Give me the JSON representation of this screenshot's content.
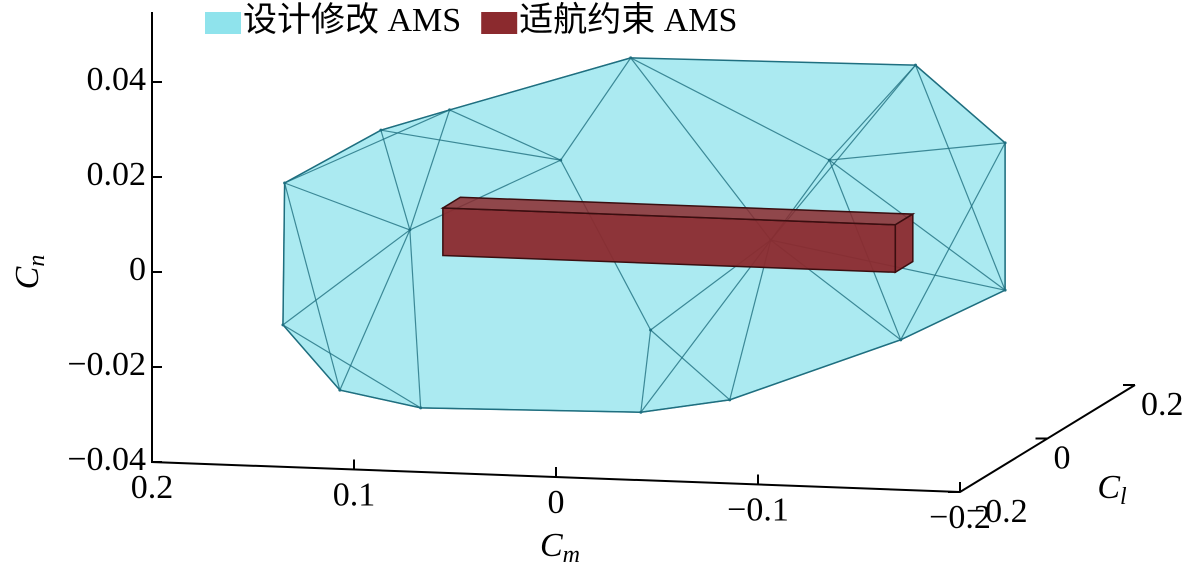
{
  "chart_data": {
    "type": "polyhedron3d",
    "xlabel": [
      "C",
      "m"
    ],
    "ylabel": [
      "C",
      "l"
    ],
    "zlabel": [
      "C",
      "n"
    ],
    "xlim": [
      -0.2,
      0.2
    ],
    "ylim": [
      -0.2,
      0.2
    ],
    "zlim": [
      -0.04,
      0.055
    ],
    "xticks": [
      0.2,
      0.1,
      0,
      {
        "value": -0.1,
        "label": "−0.1"
      },
      {
        "value": -0.2,
        "label": "−0.2"
      }
    ],
    "yticks": [
      {
        "value": -0.2,
        "label": "−0.2"
      },
      0,
      0.2
    ],
    "zticks": [
      {
        "value": -0.04,
        "label": "−0.04"
      },
      {
        "value": -0.02,
        "label": "−0.02"
      },
      0,
      0.02,
      0.04
    ],
    "series": [
      {
        "name": "设计修改 AMS",
        "color": "#8fe3ec",
        "edge_color": "#1f6f80",
        "vertices": [
          [
            0.156,
            -0.1,
            0.0138
          ],
          [
            0.146,
            -0.15,
            -0.0131
          ],
          [
            0.107,
            -0.2,
            -0.0234
          ],
          [
            0.067,
            -0.2,
            -0.0265
          ],
          [
            -0.042,
            -0.2,
            -0.0257
          ],
          [
            -0.086,
            -0.2,
            -0.0224
          ],
          [
            -0.149,
            -0.1,
            -0.0144
          ],
          [
            -0.179,
            0,
            -0.0091
          ],
          [
            -0.179,
            0,
            0.0219
          ],
          [
            -0.113,
            0.1,
            0.0316
          ],
          [
            0.028,
            0.1,
            0.0309
          ],
          [
            0.096,
            0,
            0.0245
          ],
          [
            0.13,
            0,
            0.0197
          ],
          [
            -0.063,
            0,
            -0.0004
          ],
          [
            0.041,
            0,
            0.0148
          ],
          [
            0.094,
            -0.1,
            0.0049
          ],
          [
            -0.036,
            -0.15,
            -0.0113
          ],
          [
            -0.092,
            0,
            0.0169
          ]
        ]
      },
      {
        "name": "适航约束 AMS",
        "color": "#8b2a2e",
        "box": {
          "x": [
            -0.129,
            0.095
          ],
          "y": [
            -0.02,
            0.02
          ],
          "z": [
            -0.005,
            0.005
          ]
        }
      }
    ]
  }
}
